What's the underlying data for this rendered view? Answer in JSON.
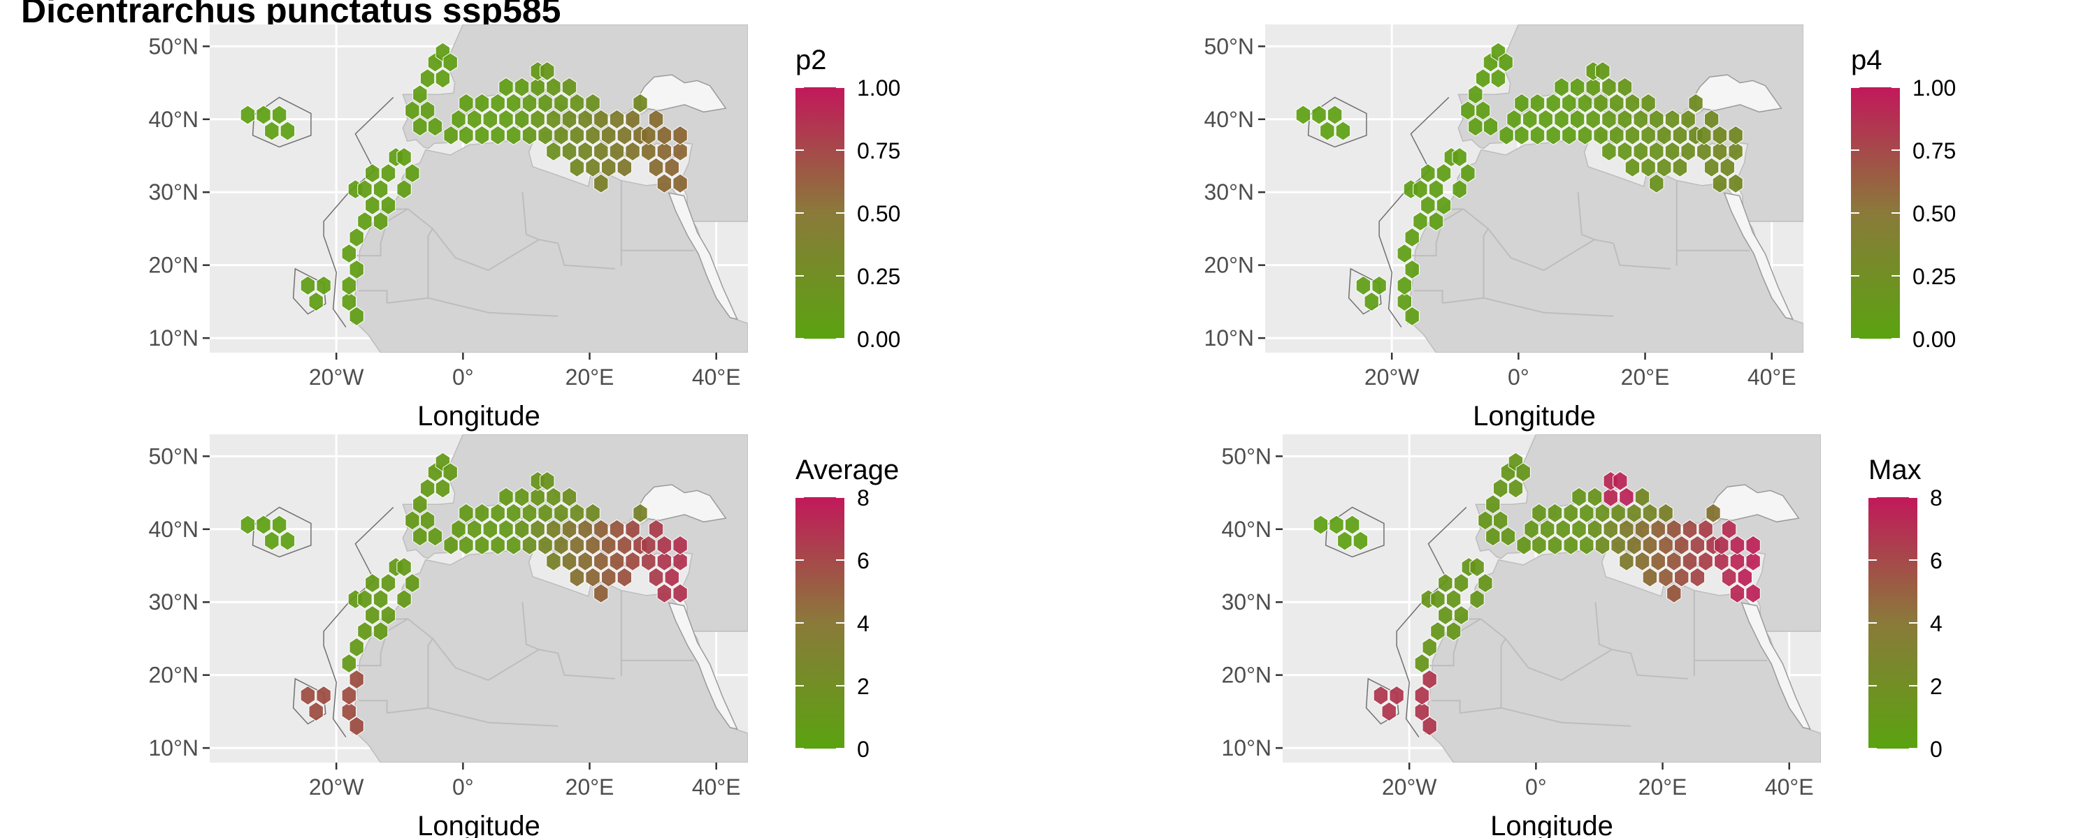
{
  "title": "Dicentrarchus punctatus ssp585",
  "chart_data": [
    {
      "type": "map",
      "id": "p2",
      "xlabel": "Longitude",
      "ylabel": "",
      "x_ticks": [
        "20°W",
        "0°",
        "20°E",
        "40°E"
      ],
      "y_ticks": [
        "50°N",
        "40°N",
        "30°N",
        "20°N",
        "10°N"
      ],
      "xlim": [
        -40,
        45
      ],
      "ylim": [
        8,
        53
      ],
      "legend": {
        "title": "p2",
        "ticks": [
          "0.00",
          "0.25",
          "0.50",
          "0.75",
          "1.00"
        ],
        "min": 0,
        "max": 1,
        "low_color": "#5aa310",
        "high_color": "#c2185b"
      },
      "value_pattern": "low (green) across Atlantic and western/central Mediterranean, moderate (~0.3-0.5) in eastern Mediterranean"
    },
    {
      "type": "map",
      "id": "p4",
      "xlabel": "Longitude",
      "ylabel": "",
      "x_ticks": [
        "20°W",
        "0°",
        "20°E",
        "40°E"
      ],
      "y_ticks": [
        "50°N",
        "40°N",
        "30°N",
        "20°N",
        "10°N"
      ],
      "xlim": [
        -40,
        45
      ],
      "ylim": [
        8,
        53
      ],
      "legend": {
        "title": "p4",
        "ticks": [
          "0.00",
          "0.25",
          "0.50",
          "0.75",
          "1.00"
        ],
        "min": 0,
        "max": 1,
        "low_color": "#5aa310",
        "high_color": "#c2185b"
      },
      "value_pattern": "mostly low (green), slightly elevated in eastern Mediterranean"
    },
    {
      "type": "map",
      "id": "average",
      "xlabel": "Longitude",
      "ylabel": "",
      "x_ticks": [
        "20°W",
        "0°",
        "20°E",
        "40°E"
      ],
      "y_ticks": [
        "50°N",
        "40°N",
        "30°N",
        "20°N",
        "10°N"
      ],
      "xlim": [
        -40,
        45
      ],
      "ylim": [
        8,
        53
      ],
      "legend": {
        "title": "Average",
        "ticks": [
          "0",
          "2",
          "4",
          "6",
          "8"
        ],
        "min": 0,
        "max": 8,
        "low_color": "#5aa310",
        "high_color": "#c2185b"
      },
      "value_pattern": "low in west, high (~6-7) in eastern Mediterranean and around Cape Verde / West Africa"
    },
    {
      "type": "map",
      "id": "max",
      "xlabel": "Longitude",
      "ylabel": "",
      "x_ticks": [
        "20°W",
        "0°",
        "20°E",
        "40°E"
      ],
      "y_ticks": [
        "50°N",
        "40°N",
        "30°N",
        "20°N",
        "10°N"
      ],
      "xlim": [
        -40,
        45
      ],
      "ylim": [
        8,
        53
      ],
      "legend": {
        "title": "Max",
        "ticks": [
          "0",
          "2",
          "4",
          "6",
          "8"
        ],
        "min": 0,
        "max": 8,
        "low_color": "#5aa310",
        "high_color": "#c2185b"
      },
      "value_pattern": "low in west, high (~7-8) in eastern Mediterranean, Adriatic and West African coast"
    }
  ]
}
